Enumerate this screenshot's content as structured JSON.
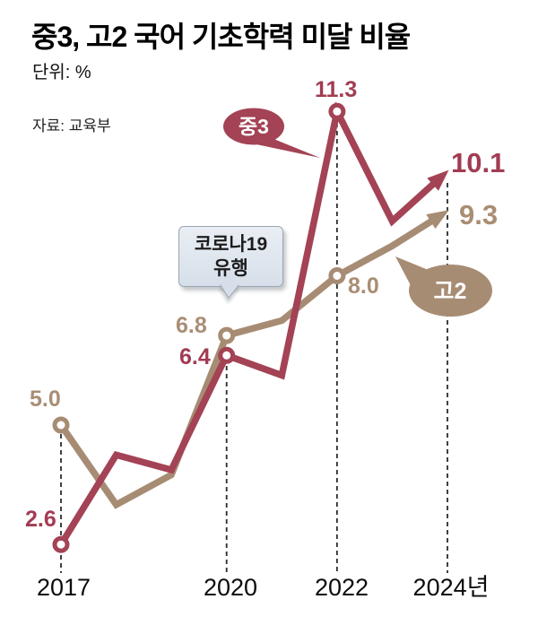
{
  "header": {
    "title": "중3, 고2 국어 기초학력 미달 비율",
    "unit_label": "단위: %",
    "source_label": "자료: 교육부"
  },
  "annotation": {
    "line1": "코로나19",
    "line2": "유행"
  },
  "badges": {
    "jung3": "중3",
    "go2": "고2"
  },
  "colors": {
    "jung3": "#a34355",
    "go2": "#a78c74",
    "jung3_label": "#a23c52",
    "go2_label": "#a98e74",
    "guide": "#2b2b2b",
    "callout_bg": "#dce4ee",
    "callout_border": "#9aa6b2"
  },
  "point_labels": {
    "jung3": {
      "y2017": "2.6",
      "y2020": "6.4",
      "y2022": "11.3",
      "y2024": "10.1"
    },
    "go2": {
      "y2017": "5.0",
      "y2020": "6.8",
      "y2022": "8.0",
      "y2024": "9.3"
    }
  },
  "xticks": [
    "2017",
    "2020",
    "2022",
    "2024년"
  ],
  "chart_data": {
    "type": "line",
    "title": "중3, 고2 국어 기초학력 미달 비율",
    "unit": "%",
    "source": "교육부",
    "x": [
      2017,
      2018,
      2019,
      2020,
      2021,
      2022,
      2023,
      2024
    ],
    "xtick_labels": [
      "2017",
      "2020",
      "2022",
      "2024년"
    ],
    "series": [
      {
        "name": "중3",
        "color": "#a34355",
        "values": [
          2.6,
          4.4,
          4.1,
          6.4,
          6.0,
          11.3,
          9.1,
          10.1
        ],
        "labeled_points": {
          "2017": 2.6,
          "2020": 6.4,
          "2022": 11.3,
          "2024": 10.1
        }
      },
      {
        "name": "고2",
        "color": "#a78c74",
        "values": [
          5.0,
          3.4,
          4.0,
          6.8,
          7.1,
          8.0,
          8.6,
          9.3
        ],
        "labeled_points": {
          "2017": 5.0,
          "2020": 6.8,
          "2022": 8.0,
          "2024": 9.3
        }
      }
    ],
    "marker_years": [
      2017,
      2020,
      2022
    ],
    "guide_years": [
      2017,
      2020,
      2022,
      2024
    ],
    "annotation": "코로나19 유행",
    "grid": false,
    "legend_position": "inline-badges",
    "ylim": [
      0,
      12
    ],
    "end_style": "arrow"
  }
}
